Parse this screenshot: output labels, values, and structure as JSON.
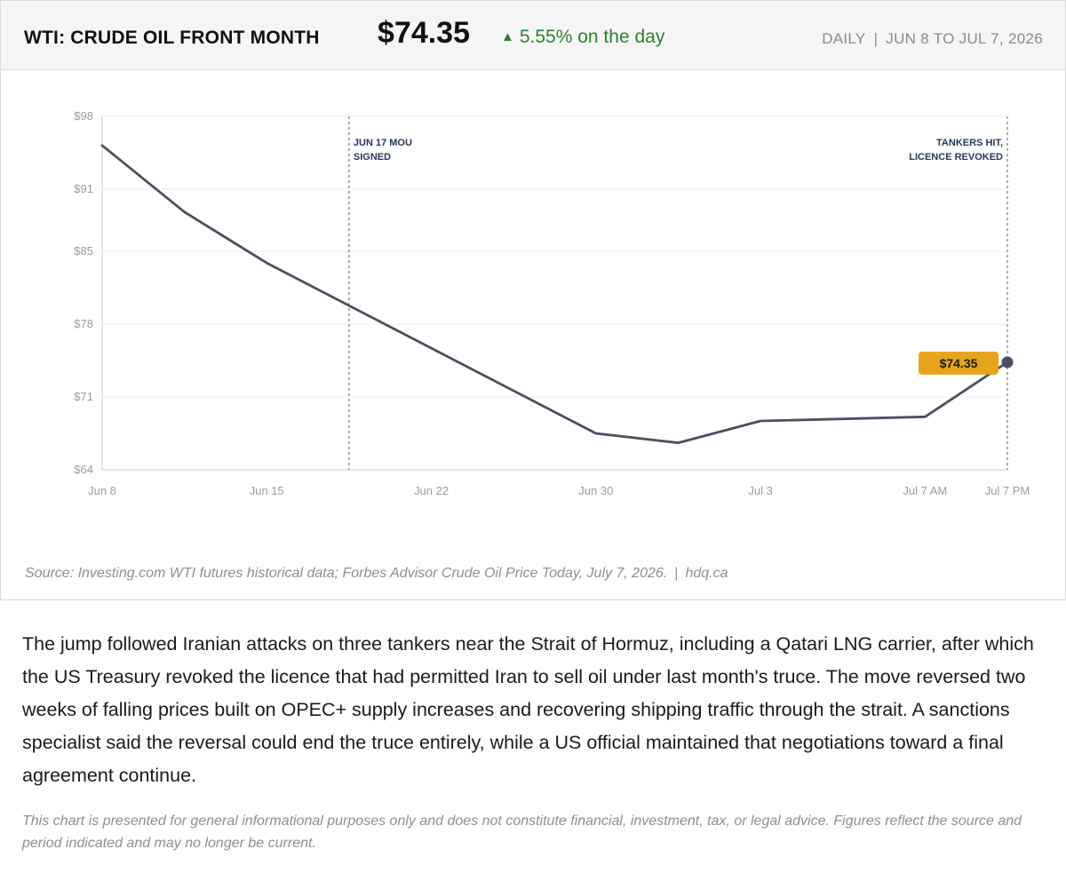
{
  "header": {
    "title": "WTI: CRUDE OIL FRONT MONTH",
    "price": "$74.35",
    "change_arrow": "▲",
    "change_text": "5.55% on the day",
    "frequency": "DAILY",
    "separator": "|",
    "period": "JUN 8 TO JUL 7, 2026"
  },
  "colors": {
    "line": "#4a5060",
    "grid": "#ececec",
    "axis": "#cccccc",
    "annotation_line": "#777777",
    "annotation_text": "#253858",
    "badge": "#e6a41e",
    "positive": "#2e7d32"
  },
  "chart_data": {
    "type": "line",
    "title": "WTI: CRUDE OIL FRONT MONTH",
    "xlabel": "",
    "ylabel": "",
    "ylim": [
      64,
      98
    ],
    "y_ticks": [
      98,
      91,
      85,
      78,
      71,
      64
    ],
    "y_tick_labels": [
      "$98",
      "$91",
      "$85",
      "$78",
      "$71",
      "$64"
    ],
    "x_tick_labels": [
      "Jun 8",
      "Jun 15",
      "Jun 22",
      "Jun 30",
      "Jul 3",
      "Jul 7 AM",
      "Jul 7 PM"
    ],
    "grid": true,
    "series": [
      {
        "values": [
          95.2,
          88.8,
          83.9,
          67.5,
          66.6,
          68.7,
          69.1,
          74.35
        ]
      }
    ],
    "point_positions": [
      0,
      1,
      2,
      6,
      7,
      8,
      10,
      11
    ],
    "x_tick_positions": [
      0,
      2,
      4,
      6,
      8,
      10,
      11
    ],
    "x_range": [
      0,
      11
    ],
    "annotations": [
      {
        "lines": [
          "JUN 17 MOU",
          "SIGNED"
        ],
        "position": 3,
        "align": "left"
      },
      {
        "lines": [
          "TANKERS HIT,",
          "LICENCE REVOKED"
        ],
        "position": 11,
        "align": "right"
      }
    ],
    "last_value_label": "$74.35"
  },
  "source": {
    "text": "Source: Investing.com WTI futures historical data; Forbes Advisor Crude Oil Price Today, July 7, 2026.",
    "separator": "|",
    "site": "hdq.ca"
  },
  "article": {
    "paragraph": "The jump followed Iranian attacks on three tankers near the Strait of Hormuz, including a Qatari LNG carrier, after which the US Treasury revoked the licence that had permitted Iran to sell oil under last month's truce. The move reversed two weeks of falling prices built on OPEC+ supply increases and recovering shipping traffic through the strait. A sanctions specialist said the reversal could end the truce entirely, while a US official maintained that negotiations toward a final agreement continue.",
    "disclaimer": "This chart is presented for general informational purposes only and does not constitute financial, investment, tax, or legal advice. Figures reflect the source and period indicated and may no longer be current."
  }
}
